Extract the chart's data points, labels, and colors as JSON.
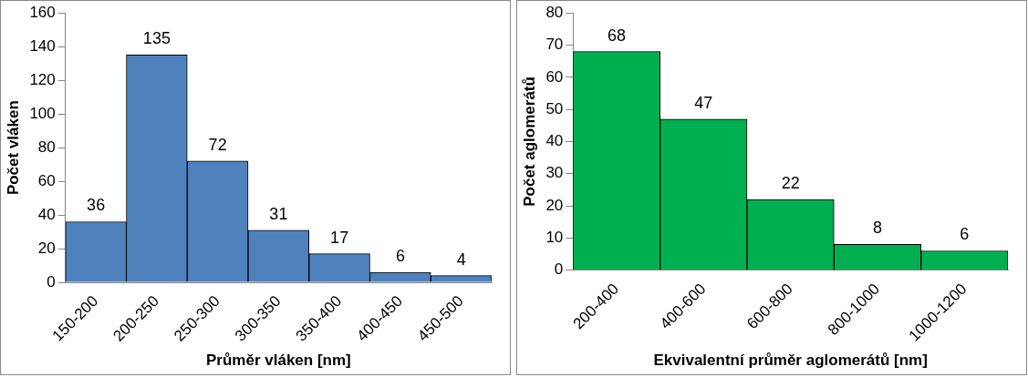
{
  "chart_data": [
    {
      "type": "bar",
      "xlabel": "Průměr vláken [nm]",
      "ylabel": "Počet vláken",
      "categories": [
        "150-200",
        "200-250",
        "250-300",
        "300-350",
        "350-400",
        "400-450",
        "450-500"
      ],
      "values": [
        36,
        135,
        72,
        31,
        17,
        6,
        4
      ],
      "color": "#4f81bd",
      "ylim": [
        0,
        160
      ],
      "yticks": [
        0,
        20,
        40,
        60,
        80,
        100,
        120,
        140,
        160
      ],
      "data_labels": true,
      "grid": false,
      "legend": false
    },
    {
      "type": "bar",
      "xlabel": "Ekvivalentní průměr aglomerátů [nm]",
      "ylabel": "Počet aglomerátů",
      "categories": [
        "200-400",
        "400-600",
        "600-800",
        "800-1000",
        "1000-1200"
      ],
      "values": [
        68,
        47,
        22,
        8,
        6
      ],
      "color": "#00b050",
      "ylim": [
        0,
        80
      ],
      "yticks": [
        0,
        10,
        20,
        30,
        40,
        50,
        60,
        70,
        80
      ],
      "data_labels": true,
      "grid": false,
      "legend": false
    }
  ]
}
